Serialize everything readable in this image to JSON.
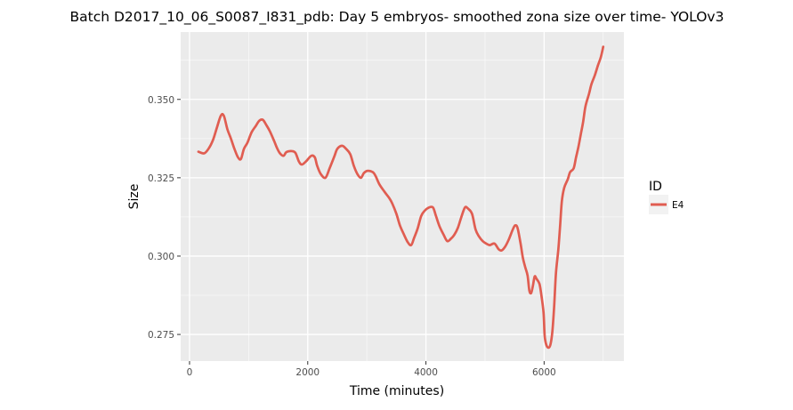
{
  "chart_data": {
    "type": "line",
    "title": "Batch D2017_10_06_S0087_I831_pdb: Day 5 embryos- smoothed zona size over time- YOLOv3",
    "xlabel": "Time (minutes)",
    "ylabel": "Size",
    "xlim": [
      -150,
      7350
    ],
    "ylim": [
      0.2665,
      0.3715
    ],
    "x_ticks": [
      0,
      2000,
      4000,
      6000
    ],
    "x_tick_labels": [
      "0",
      "2000",
      "4000",
      "6000"
    ],
    "y_ticks": [
      0.275,
      0.3,
      0.325,
      0.35
    ],
    "y_tick_labels": [
      "0.275",
      "0.300",
      "0.325",
      "0.350"
    ],
    "grid": true,
    "legend": {
      "title": "ID",
      "position": "right"
    },
    "series": [
      {
        "name": "E4",
        "color": "#e05d51",
        "points": [
          [
            150,
            0.3333
          ],
          [
            250,
            0.3328
          ],
          [
            330,
            0.3345
          ],
          [
            400,
            0.3372
          ],
          [
            460,
            0.3408
          ],
          [
            530,
            0.3448
          ],
          [
            580,
            0.3448
          ],
          [
            640,
            0.3405
          ],
          [
            700,
            0.3375
          ],
          [
            760,
            0.3342
          ],
          [
            820,
            0.3315
          ],
          [
            870,
            0.331
          ],
          [
            920,
            0.3342
          ],
          [
            980,
            0.3362
          ],
          [
            1050,
            0.3395
          ],
          [
            1120,
            0.3415
          ],
          [
            1180,
            0.3432
          ],
          [
            1240,
            0.3435
          ],
          [
            1300,
            0.3418
          ],
          [
            1360,
            0.3398
          ],
          [
            1430,
            0.3368
          ],
          [
            1480,
            0.3345
          ],
          [
            1530,
            0.3328
          ],
          [
            1590,
            0.332
          ],
          [
            1640,
            0.3332
          ],
          [
            1720,
            0.3335
          ],
          [
            1790,
            0.333
          ],
          [
            1850,
            0.3302
          ],
          [
            1900,
            0.3292
          ],
          [
            1970,
            0.3302
          ],
          [
            2060,
            0.332
          ],
          [
            2120,
            0.3315
          ],
          [
            2160,
            0.3288
          ],
          [
            2220,
            0.3262
          ],
          [
            2300,
            0.325
          ],
          [
            2370,
            0.328
          ],
          [
            2450,
            0.3318
          ],
          [
            2500,
            0.3342
          ],
          [
            2580,
            0.3352
          ],
          [
            2650,
            0.3342
          ],
          [
            2720,
            0.3325
          ],
          [
            2780,
            0.3288
          ],
          [
            2840,
            0.3262
          ],
          [
            2900,
            0.325
          ],
          [
            2950,
            0.3265
          ],
          [
            3010,
            0.3272
          ],
          [
            3100,
            0.3268
          ],
          [
            3150,
            0.3255
          ],
          [
            3210,
            0.323
          ],
          [
            3300,
            0.3205
          ],
          [
            3380,
            0.3185
          ],
          [
            3430,
            0.3168
          ],
          [
            3500,
            0.3135
          ],
          [
            3560,
            0.3098
          ],
          [
            3620,
            0.3072
          ],
          [
            3690,
            0.3045
          ],
          [
            3750,
            0.3035
          ],
          [
            3800,
            0.3058
          ],
          [
            3860,
            0.3088
          ],
          [
            3920,
            0.3128
          ],
          [
            3980,
            0.3145
          ],
          [
            4050,
            0.3155
          ],
          [
            4120,
            0.3155
          ],
          [
            4170,
            0.3128
          ],
          [
            4230,
            0.3095
          ],
          [
            4300,
            0.3068
          ],
          [
            4360,
            0.3048
          ],
          [
            4420,
            0.3055
          ],
          [
            4480,
            0.3068
          ],
          [
            4540,
            0.309
          ],
          [
            4600,
            0.3125
          ],
          [
            4660,
            0.3155
          ],
          [
            4710,
            0.3152
          ],
          [
            4780,
            0.3135
          ],
          [
            4840,
            0.3085
          ],
          [
            4900,
            0.3062
          ],
          [
            4960,
            0.3048
          ],
          [
            5020,
            0.304
          ],
          [
            5080,
            0.3035
          ],
          [
            5160,
            0.304
          ],
          [
            5230,
            0.3022
          ],
          [
            5280,
            0.3018
          ],
          [
            5340,
            0.303
          ],
          [
            5400,
            0.3052
          ],
          [
            5470,
            0.3085
          ],
          [
            5510,
            0.3098
          ],
          [
            5550,
            0.309
          ],
          [
            5600,
            0.3042
          ],
          [
            5640,
            0.2995
          ],
          [
            5680,
            0.2965
          ],
          [
            5720,
            0.2938
          ],
          [
            5750,
            0.289
          ],
          [
            5780,
            0.2882
          ],
          [
            5810,
            0.2905
          ],
          [
            5840,
            0.2935
          ],
          [
            5870,
            0.2928
          ],
          [
            5920,
            0.2912
          ],
          [
            5950,
            0.288
          ],
          [
            5990,
            0.282
          ],
          [
            6010,
            0.2745
          ],
          [
            6040,
            0.2715
          ],
          [
            6080,
            0.2708
          ],
          [
            6110,
            0.272
          ],
          [
            6140,
            0.276
          ],
          [
            6170,
            0.284
          ],
          [
            6200,
            0.2945
          ],
          [
            6240,
            0.302
          ],
          [
            6270,
            0.3095
          ],
          [
            6300,
            0.3175
          ],
          [
            6340,
            0.3218
          ],
          [
            6400,
            0.3245
          ],
          [
            6440,
            0.3268
          ],
          [
            6500,
            0.328
          ],
          [
            6540,
            0.3315
          ],
          [
            6580,
            0.3348
          ],
          [
            6620,
            0.3388
          ],
          [
            6660,
            0.3428
          ],
          [
            6700,
            0.3478
          ],
          [
            6760,
            0.3518
          ],
          [
            6800,
            0.3548
          ],
          [
            6860,
            0.3578
          ],
          [
            6910,
            0.3608
          ],
          [
            6960,
            0.3635
          ],
          [
            7000,
            0.3668
          ]
        ]
      }
    ]
  }
}
